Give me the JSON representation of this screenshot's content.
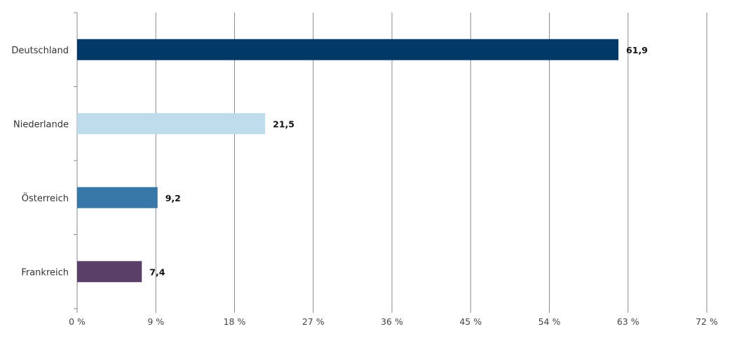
{
  "chart_data": {
    "type": "bar",
    "orientation": "horizontal",
    "categories": [
      "Deutschland",
      "Niederlande",
      "Österreich",
      "Frankreich"
    ],
    "values": [
      61.9,
      21.5,
      9.2,
      7.4
    ],
    "value_labels": [
      "61,9",
      "21,5",
      "9,2",
      "7,4"
    ],
    "colors": [
      "#003868",
      "#bedcec",
      "#3878a8",
      "#5a4068"
    ],
    "xlim": [
      0,
      72
    ],
    "xticks": [
      0,
      9,
      18,
      27,
      36,
      45,
      54,
      63,
      72
    ],
    "xtick_labels": [
      "0 %",
      "9 %",
      "18 %",
      "27 %",
      "36 %",
      "45 %",
      "54 %",
      "63 %",
      "72 %"
    ],
    "grid": true,
    "gridline_color": "#8a8a8a",
    "axis_color": "#8a8a8a",
    "legend": "none",
    "title": "",
    "xlabel": "",
    "ylabel": ""
  }
}
